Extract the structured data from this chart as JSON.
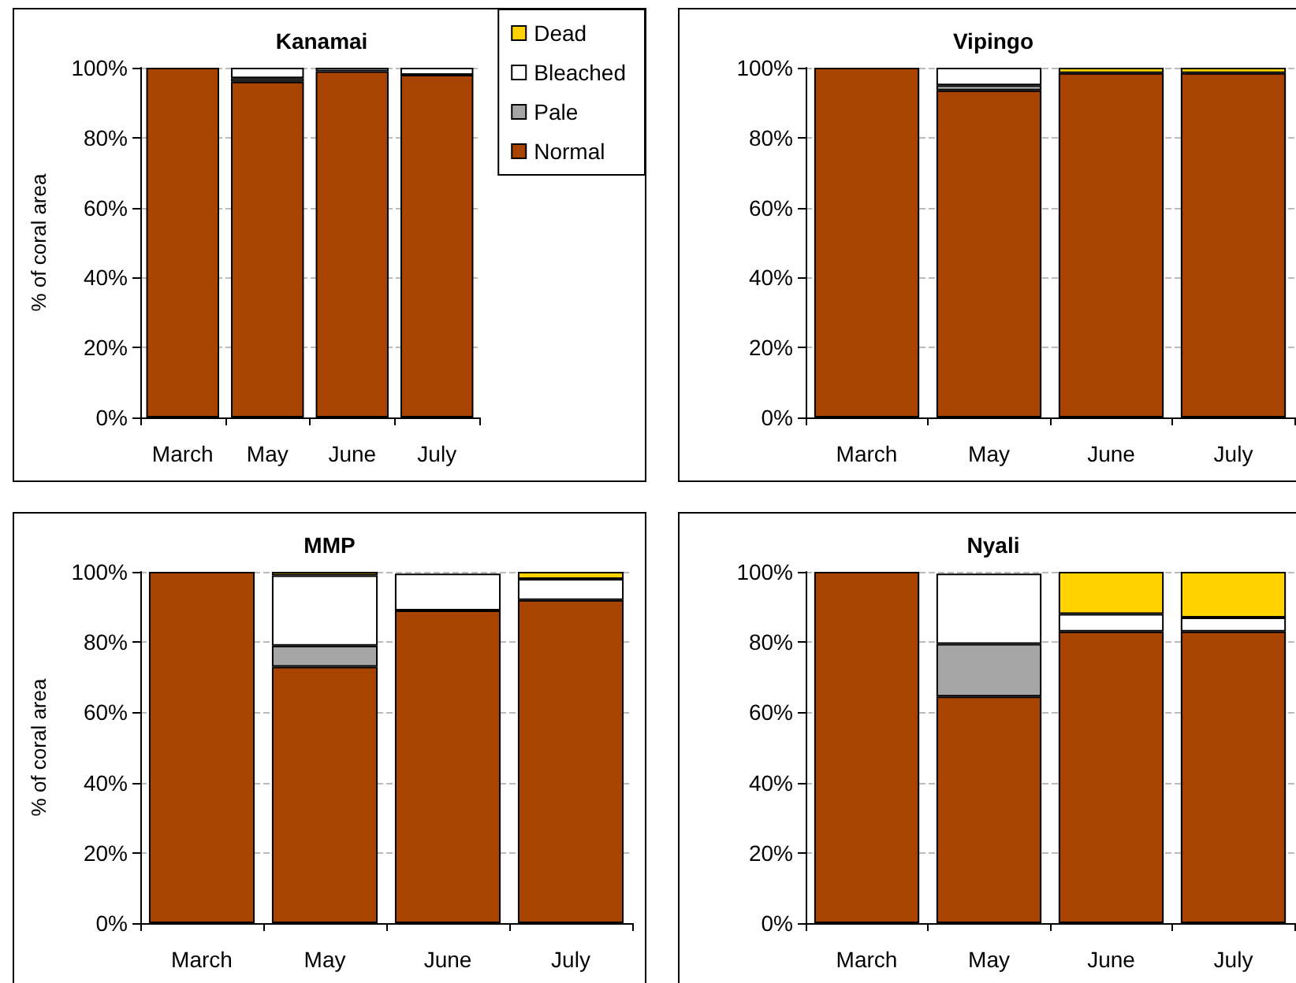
{
  "chart_data": [
    {
      "type": "bar",
      "title": "Kanamai",
      "ylabel": "% of coral area",
      "categories": [
        "March",
        "May",
        "June",
        "July"
      ],
      "stacked": true,
      "ylim": [
        0,
        100
      ],
      "yticks": [
        {
          "value": 0,
          "label": "0%"
        },
        {
          "value": 20,
          "label": "20%"
        },
        {
          "value": 40,
          "label": "40%"
        },
        {
          "value": 60,
          "label": "60%"
        },
        {
          "value": 80,
          "label": "80%"
        },
        {
          "value": 100,
          "label": "100%"
        }
      ],
      "grid": "y",
      "legend": "top right",
      "series": [
        {
          "name": "Normal",
          "color": "#a84400",
          "values": [
            100,
            96,
            99,
            98
          ]
        },
        {
          "name": "Pale",
          "color": "#a6a6a6",
          "values": [
            0,
            1,
            0,
            0
          ]
        },
        {
          "name": "Bleached",
          "color": "#ffffff",
          "values": [
            0,
            3,
            1,
            2
          ]
        },
        {
          "name": "Dead",
          "color": "#ffd200",
          "values": [
            0,
            0,
            0,
            0
          ]
        }
      ]
    },
    {
      "type": "bar",
      "title": "Vipingo",
      "categories": [
        "March",
        "May",
        "June",
        "July"
      ],
      "stacked": true,
      "ylim": [
        0,
        100
      ],
      "yticks": [
        {
          "value": 0,
          "label": "0%"
        },
        {
          "value": 20,
          "label": "20%"
        },
        {
          "value": 40,
          "label": "40%"
        },
        {
          "value": 60,
          "label": "60%"
        },
        {
          "value": 80,
          "label": "80%"
        },
        {
          "value": 100,
          "label": "100%"
        }
      ],
      "grid": "y",
      "series": [
        {
          "color": "#a84400",
          "values": [
            100,
            93.5,
            98.5,
            98.5
          ]
        },
        {
          "color": "#a6a6a6",
          "values": [
            0,
            1.5,
            0,
            0
          ]
        },
        {
          "color": "#ffffff",
          "values": [
            0,
            5,
            0,
            0
          ]
        },
        {
          "color": "#ffd200",
          "values": [
            0,
            0,
            1.5,
            1.5
          ]
        }
      ]
    },
    {
      "type": "bar",
      "title": "MMP",
      "ylabel": "% of coral area",
      "categories": [
        "March",
        "May",
        "June",
        "July"
      ],
      "stacked": true,
      "ylim": [
        0,
        100
      ],
      "yticks": [
        {
          "value": 0,
          "label": "0%"
        },
        {
          "value": 20,
          "label": "20%"
        },
        {
          "value": 40,
          "label": "40%"
        },
        {
          "value": 60,
          "label": "60%"
        },
        {
          "value": 80,
          "label": "80%"
        },
        {
          "value": 100,
          "label": "100%"
        }
      ],
      "grid": "y",
      "series": [
        {
          "color": "#a84400",
          "values": [
            100,
            73,
            89,
            92
          ]
        },
        {
          "color": "#a6a6a6",
          "values": [
            0,
            6,
            0,
            0
          ]
        },
        {
          "color": "#ffffff",
          "values": [
            0,
            20,
            10.5,
            6
          ]
        },
        {
          "color": "#ffd200",
          "values": [
            0,
            1,
            null,
            2
          ]
        }
      ]
    },
    {
      "type": "bar",
      "title": "Nyali",
      "categories": [
        "March",
        "May",
        "June",
        "July"
      ],
      "stacked": true,
      "ylim": [
        0,
        100
      ],
      "yticks": [
        {
          "value": 0,
          "label": "0%"
        },
        {
          "value": 20,
          "label": "20%"
        },
        {
          "value": 40,
          "label": "40%"
        },
        {
          "value": 60,
          "label": "60%"
        },
        {
          "value": 80,
          "label": "80%"
        },
        {
          "value": 100,
          "label": "100%"
        }
      ],
      "grid": "y",
      "series": [
        {
          "color": "#a84400",
          "values": [
            100,
            64.5,
            83,
            83
          ]
        },
        {
          "color": "#a6a6a6",
          "values": [
            0,
            15,
            0,
            0
          ]
        },
        {
          "color": "#ffffff",
          "values": [
            0,
            20,
            5,
            4
          ]
        },
        {
          "color": "#ffd200",
          "values": [
            0,
            null,
            12,
            13
          ]
        }
      ]
    }
  ]
}
